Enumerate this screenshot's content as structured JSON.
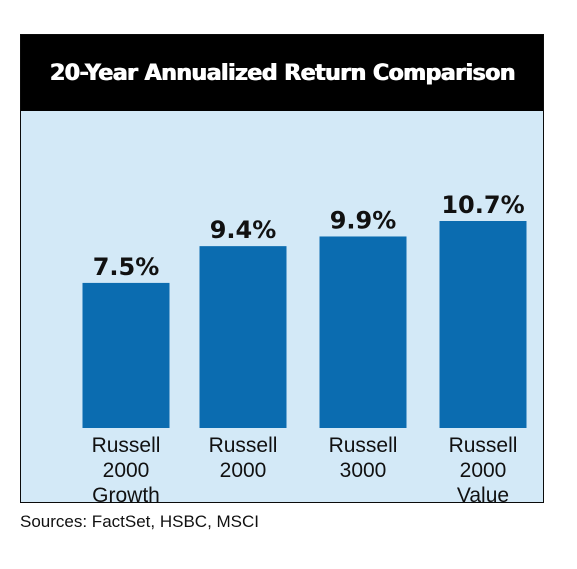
{
  "chart_data": {
    "type": "bar",
    "title": "20-Year Annualized Return Comparison",
    "categories": [
      [
        "Russell",
        "2000",
        "Growth"
      ],
      [
        "Russell",
        "2000"
      ],
      [
        "Russell",
        "3000"
      ],
      [
        "Russell",
        "2000",
        "Value"
      ]
    ],
    "values": [
      7.5,
      9.4,
      9.9,
      10.7
    ],
    "data_labels": [
      "7.5%",
      "9.4%",
      "9.9%",
      "10.7%"
    ],
    "bar_color": "#0b6cb0",
    "background_color": "#d3e9f7",
    "ylim": [
      0,
      10.7
    ],
    "grid": false,
    "legend": "none"
  },
  "source": "Sources: FactSet, HSBC, MSCI"
}
